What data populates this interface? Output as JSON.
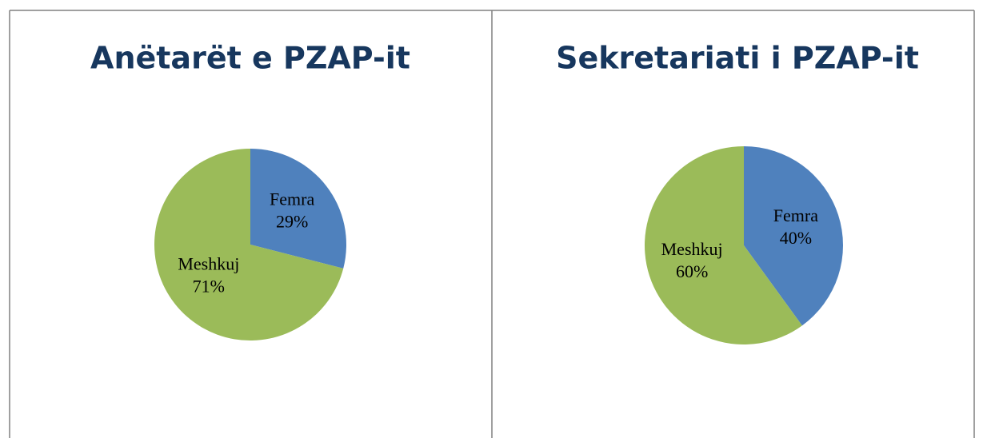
{
  "chart_data": [
    {
      "type": "pie",
      "title": "Anëtarët e PZAP-it",
      "categories": [
        "Femra",
        "Meshkuj"
      ],
      "values": [
        29,
        71
      ],
      "value_labels": [
        "29%",
        "71%"
      ],
      "colors": [
        "#4f81bd",
        "#9bbb59"
      ]
    },
    {
      "type": "pie",
      "title": "Sekretariati i PZAP-it",
      "categories": [
        "Femra",
        "Meshkuj"
      ],
      "values": [
        40,
        60
      ],
      "value_labels": [
        "40%",
        "60%"
      ],
      "colors": [
        "#4f81bd",
        "#9bbb59"
      ]
    }
  ]
}
